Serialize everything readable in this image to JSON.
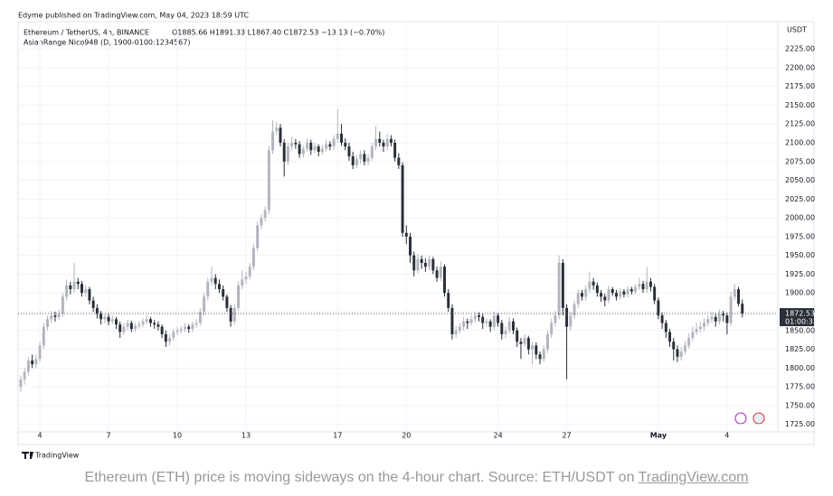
{
  "header": {
    "published": "Edyme published on TradingView.com, May 04, 2023 18:59 UTC"
  },
  "chart_data": {
    "type": "candlestick",
    "symbol_line": "Ethereum / TetherUS, 4h, BINANCE",
    "ohlc_line": "O1885.66 H1891.33 L1867.40 C1872.53 −13.13 (−0.70%)",
    "indicator_line": "AsianRange Nico948 (D, 1900-0100:1234567)",
    "currency": "USDT",
    "countdown": "01:00:33",
    "up_color": "#b2b5be",
    "down_color": "#2a2e39",
    "grid": true,
    "xlim": [
      -0.7,
      198.3
    ],
    "ylim": [
      1715,
      2260
    ],
    "xticks": [
      {
        "value": 5,
        "label": "4"
      },
      {
        "value": 23,
        "label": "7"
      },
      {
        "value": 41,
        "label": "10"
      },
      {
        "value": 59,
        "label": "13"
      },
      {
        "value": 83,
        "label": "17"
      },
      {
        "value": 101,
        "label": "20"
      },
      {
        "value": 125,
        "label": "24"
      },
      {
        "value": 143,
        "label": "27"
      },
      {
        "value": 167,
        "label": "May"
      },
      {
        "value": 185,
        "label": "4"
      }
    ],
    "yticks": [
      {
        "value": 1725,
        "label": "1725.00"
      },
      {
        "value": 1750,
        "label": "1750.00"
      },
      {
        "value": 1775,
        "label": "1775.00"
      },
      {
        "value": 1800,
        "label": "1800.00"
      },
      {
        "value": 1825,
        "label": "1825.00"
      },
      {
        "value": 1850,
        "label": "1850.00"
      },
      {
        "value": 1875,
        "label": "1875.00"
      },
      {
        "value": 1900,
        "label": "1900.00"
      },
      {
        "value": 1925,
        "label": "1925.00"
      },
      {
        "value": 1950,
        "label": "1950.00"
      },
      {
        "value": 1975,
        "label": "1975.00"
      },
      {
        "value": 2000,
        "label": "2000.00"
      },
      {
        "value": 2025,
        "label": "2025.00"
      },
      {
        "value": 2050,
        "label": "2050.00"
      },
      {
        "value": 2075,
        "label": "2075.00"
      },
      {
        "value": 2100,
        "label": "2100.00"
      },
      {
        "value": 2125,
        "label": "2125.00"
      },
      {
        "value": 2150,
        "label": "2150.00"
      },
      {
        "value": 2175,
        "label": "2175.00"
      },
      {
        "value": 2200,
        "label": "2200.00"
      },
      {
        "value": 2225,
        "label": "2225.00"
      }
    ],
    "candles": [
      [
        1775,
        1790,
        1768,
        1785
      ],
      [
        1785,
        1800,
        1778,
        1795
      ],
      [
        1795,
        1815,
        1790,
        1810
      ],
      [
        1810,
        1818,
        1800,
        1805
      ],
      [
        1805,
        1818,
        1800,
        1812
      ],
      [
        1812,
        1835,
        1808,
        1830
      ],
      [
        1830,
        1860,
        1825,
        1855
      ],
      [
        1855,
        1870,
        1850,
        1865
      ],
      [
        1865,
        1876,
        1860,
        1870
      ],
      [
        1870,
        1875,
        1862,
        1868
      ],
      [
        1868,
        1878,
        1864,
        1872
      ],
      [
        1872,
        1900,
        1868,
        1895
      ],
      [
        1895,
        1918,
        1890,
        1910
      ],
      [
        1910,
        1915,
        1898,
        1905
      ],
      [
        1905,
        1940,
        1900,
        1915
      ],
      [
        1915,
        1920,
        1905,
        1912
      ],
      [
        1912,
        1916,
        1895,
        1900
      ],
      [
        1900,
        1910,
        1895,
        1905
      ],
      [
        1905,
        1908,
        1885,
        1890
      ],
      [
        1890,
        1895,
        1875,
        1880
      ],
      [
        1880,
        1885,
        1866,
        1872
      ],
      [
        1872,
        1876,
        1858,
        1865
      ],
      [
        1865,
        1872,
        1860,
        1868
      ],
      [
        1868,
        1872,
        1857,
        1862
      ],
      [
        1862,
        1870,
        1858,
        1865
      ],
      [
        1865,
        1868,
        1852,
        1858
      ],
      [
        1858,
        1862,
        1840,
        1848
      ],
      [
        1848,
        1860,
        1844,
        1855
      ],
      [
        1855,
        1864,
        1850,
        1860
      ],
      [
        1860,
        1863,
        1848,
        1852
      ],
      [
        1852,
        1860,
        1848,
        1856
      ],
      [
        1856,
        1862,
        1852,
        1858
      ],
      [
        1858,
        1866,
        1854,
        1862
      ],
      [
        1862,
        1870,
        1858,
        1865
      ],
      [
        1865,
        1868,
        1855,
        1860
      ],
      [
        1860,
        1864,
        1852,
        1858
      ],
      [
        1858,
        1862,
        1850,
        1855
      ],
      [
        1855,
        1858,
        1840,
        1845
      ],
      [
        1845,
        1850,
        1828,
        1835
      ],
      [
        1835,
        1845,
        1830,
        1840
      ],
      [
        1840,
        1852,
        1836,
        1848
      ],
      [
        1848,
        1855,
        1844,
        1850
      ],
      [
        1850,
        1856,
        1846,
        1852
      ],
      [
        1852,
        1860,
        1848,
        1855
      ],
      [
        1855,
        1858,
        1847,
        1852
      ],
      [
        1852,
        1862,
        1848,
        1858
      ],
      [
        1858,
        1865,
        1854,
        1860
      ],
      [
        1860,
        1880,
        1856,
        1875
      ],
      [
        1875,
        1900,
        1870,
        1895
      ],
      [
        1895,
        1920,
        1890,
        1915
      ],
      [
        1915,
        1935,
        1910,
        1920
      ],
      [
        1920,
        1925,
        1905,
        1912
      ],
      [
        1912,
        1918,
        1900,
        1905
      ],
      [
        1905,
        1910,
        1890,
        1895
      ],
      [
        1895,
        1898,
        1875,
        1880
      ],
      [
        1880,
        1884,
        1855,
        1862
      ],
      [
        1862,
        1885,
        1858,
        1880
      ],
      [
        1880,
        1915,
        1876,
        1910
      ],
      [
        1910,
        1930,
        1905,
        1918
      ],
      [
        1918,
        1928,
        1912,
        1922
      ],
      [
        1922,
        1940,
        1918,
        1935
      ],
      [
        1935,
        1965,
        1930,
        1960
      ],
      [
        1960,
        1995,
        1955,
        1990
      ],
      [
        1990,
        2005,
        1985,
        2000
      ],
      [
        2000,
        2015,
        1995,
        2010
      ],
      [
        2010,
        2095,
        2005,
        2090
      ],
      [
        2090,
        2130,
        2085,
        2115
      ],
      [
        2115,
        2128,
        2110,
        2120
      ],
      [
        2120,
        2125,
        2095,
        2100
      ],
      [
        2100,
        2105,
        2055,
        2075
      ],
      [
        2075,
        2100,
        2070,
        2095
      ],
      [
        2095,
        2108,
        2090,
        2100
      ],
      [
        2100,
        2105,
        2092,
        2098
      ],
      [
        2098,
        2102,
        2080,
        2085
      ],
      [
        2085,
        2096,
        2080,
        2092
      ],
      [
        2092,
        2106,
        2088,
        2100
      ],
      [
        2100,
        2104,
        2084,
        2090
      ],
      [
        2090,
        2100,
        2086,
        2095
      ],
      [
        2095,
        2098,
        2082,
        2088
      ],
      [
        2088,
        2097,
        2084,
        2092
      ],
      [
        2092,
        2104,
        2088,
        2098
      ],
      [
        2098,
        2102,
        2090,
        2095
      ],
      [
        2095,
        2110,
        2090,
        2105
      ],
      [
        2105,
        2145,
        2100,
        2112
      ],
      [
        2112,
        2125,
        2096,
        2100
      ],
      [
        2100,
        2106,
        2090,
        2095
      ],
      [
        2095,
        2100,
        2076,
        2082
      ],
      [
        2082,
        2088,
        2065,
        2070
      ],
      [
        2070,
        2084,
        2066,
        2078
      ],
      [
        2078,
        2090,
        2072,
        2085
      ],
      [
        2085,
        2090,
        2070,
        2075
      ],
      [
        2075,
        2085,
        2070,
        2080
      ],
      [
        2080,
        2100,
        2076,
        2095
      ],
      [
        2095,
        2122,
        2090,
        2105
      ],
      [
        2105,
        2115,
        2095,
        2100
      ],
      [
        2100,
        2104,
        2088,
        2095
      ],
      [
        2095,
        2112,
        2090,
        2105
      ],
      [
        2105,
        2110,
        2095,
        2100
      ],
      [
        2100,
        2104,
        2075,
        2080
      ],
      [
        2080,
        2086,
        2065,
        2070
      ],
      [
        2070,
        2074,
        1975,
        1980
      ],
      [
        1980,
        1990,
        1965,
        1975
      ],
      [
        1975,
        1980,
        1940,
        1950
      ],
      [
        1950,
        1955,
        1922,
        1930
      ],
      [
        1930,
        1952,
        1926,
        1945
      ],
      [
        1945,
        1950,
        1932,
        1940
      ],
      [
        1940,
        1946,
        1928,
        1935
      ],
      [
        1935,
        1950,
        1930,
        1945
      ],
      [
        1945,
        1948,
        1925,
        1930
      ],
      [
        1930,
        1935,
        1915,
        1920
      ],
      [
        1920,
        1942,
        1916,
        1935
      ],
      [
        1935,
        1938,
        1895,
        1900
      ],
      [
        1900,
        1905,
        1875,
        1880
      ],
      [
        1880,
        1885,
        1838,
        1845
      ],
      [
        1845,
        1856,
        1840,
        1850
      ],
      [
        1850,
        1860,
        1846,
        1855
      ],
      [
        1855,
        1868,
        1850,
        1862
      ],
      [
        1862,
        1866,
        1852,
        1860
      ],
      [
        1860,
        1870,
        1856,
        1865
      ],
      [
        1865,
        1875,
        1860,
        1870
      ],
      [
        1870,
        1874,
        1862,
        1868
      ],
      [
        1868,
        1872,
        1852,
        1860
      ],
      [
        1860,
        1866,
        1855,
        1862
      ],
      [
        1862,
        1865,
        1848,
        1855
      ],
      [
        1855,
        1875,
        1850,
        1870
      ],
      [
        1870,
        1873,
        1855,
        1860
      ],
      [
        1860,
        1864,
        1838,
        1845
      ],
      [
        1845,
        1855,
        1840,
        1850
      ],
      [
        1850,
        1868,
        1846,
        1862
      ],
      [
        1862,
        1866,
        1845,
        1850
      ],
      [
        1850,
        1854,
        1828,
        1835
      ],
      [
        1835,
        1840,
        1812,
        1832
      ],
      [
        1832,
        1845,
        1828,
        1840
      ],
      [
        1840,
        1843,
        1818,
        1825
      ],
      [
        1825,
        1835,
        1805,
        1830
      ],
      [
        1830,
        1834,
        1812,
        1818
      ],
      [
        1818,
        1822,
        1805,
        1812
      ],
      [
        1812,
        1830,
        1808,
        1825
      ],
      [
        1825,
        1850,
        1820,
        1845
      ],
      [
        1845,
        1866,
        1840,
        1860
      ],
      [
        1860,
        1876,
        1855,
        1870
      ],
      [
        1870,
        1950,
        1865,
        1940
      ],
      [
        1940,
        1945,
        1870,
        1880
      ],
      [
        1880,
        1885,
        1785,
        1855
      ],
      [
        1855,
        1875,
        1850,
        1870
      ],
      [
        1870,
        1890,
        1865,
        1885
      ],
      [
        1885,
        1905,
        1880,
        1900
      ],
      [
        1900,
        1904,
        1890,
        1895
      ],
      [
        1895,
        1910,
        1890,
        1905
      ],
      [
        1905,
        1928,
        1900,
        1915
      ],
      [
        1915,
        1920,
        1904,
        1910
      ],
      [
        1910,
        1914,
        1895,
        1900
      ],
      [
        1900,
        1904,
        1888,
        1895
      ],
      [
        1895,
        1899,
        1882,
        1890
      ],
      [
        1890,
        1910,
        1886,
        1905
      ],
      [
        1905,
        1908,
        1896,
        1900
      ],
      [
        1900,
        1904,
        1890,
        1895
      ],
      [
        1895,
        1906,
        1891,
        1902
      ],
      [
        1902,
        1905,
        1894,
        1898
      ],
      [
        1898,
        1909,
        1894,
        1905
      ],
      [
        1905,
        1908,
        1898,
        1902
      ],
      [
        1902,
        1912,
        1898,
        1908
      ],
      [
        1908,
        1920,
        1904,
        1912
      ],
      [
        1912,
        1916,
        1900,
        1905
      ],
      [
        1905,
        1935,
        1900,
        1915
      ],
      [
        1915,
        1920,
        1902,
        1908
      ],
      [
        1908,
        1912,
        1885,
        1890
      ],
      [
        1890,
        1894,
        1865,
        1870
      ],
      [
        1870,
        1874,
        1852,
        1860
      ],
      [
        1860,
        1864,
        1840,
        1848
      ],
      [
        1848,
        1852,
        1828,
        1835
      ],
      [
        1835,
        1840,
        1810,
        1825
      ],
      [
        1825,
        1830,
        1808,
        1815
      ],
      [
        1815,
        1828,
        1810,
        1822
      ],
      [
        1822,
        1836,
        1818,
        1830
      ],
      [
        1830,
        1846,
        1826,
        1840
      ],
      [
        1840,
        1855,
        1836,
        1848
      ],
      [
        1848,
        1860,
        1844,
        1852
      ],
      [
        1852,
        1862,
        1848,
        1855
      ],
      [
        1855,
        1866,
        1850,
        1860
      ],
      [
        1860,
        1870,
        1856,
        1865
      ],
      [
        1865,
        1875,
        1860,
        1868
      ],
      [
        1868,
        1872,
        1855,
        1862
      ],
      [
        1862,
        1878,
        1858,
        1872
      ],
      [
        1872,
        1876,
        1862,
        1870
      ],
      [
        1870,
        1874,
        1845,
        1860
      ],
      [
        1860,
        1902,
        1856,
        1895
      ],
      [
        1895,
        1912,
        1890,
        1905
      ],
      [
        1905,
        1908,
        1882,
        1885.66
      ],
      [
        1885.66,
        1891.33,
        1867.4,
        1872.53
      ]
    ]
  },
  "footer": {
    "logo": "TradingView",
    "caption": "Ethereum (ETH) price is moving sideways on the 4-hour chart. Source: ETH/USDT on ",
    "link": "TradingView.com"
  }
}
